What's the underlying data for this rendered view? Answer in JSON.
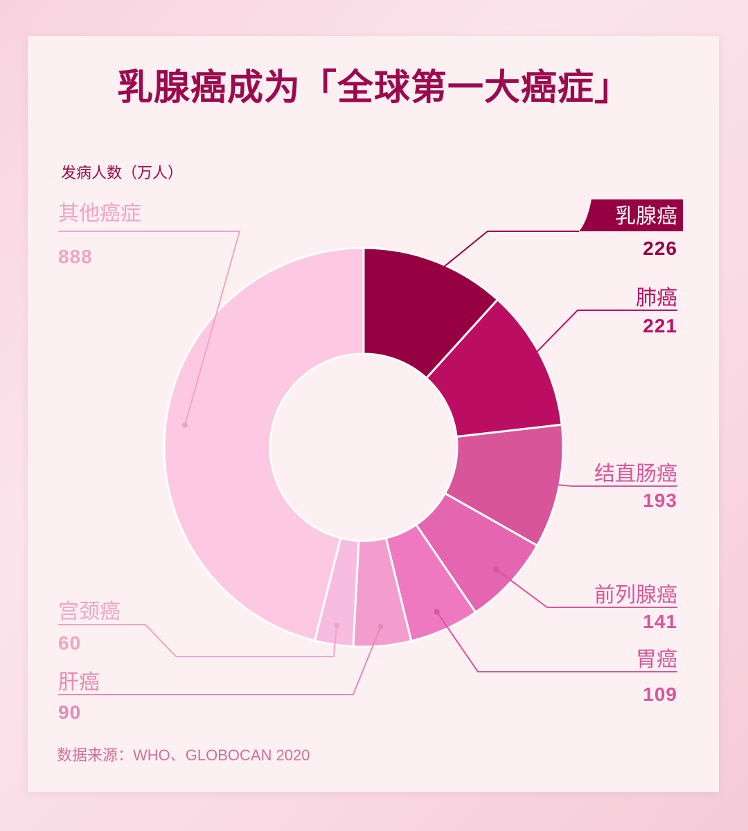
{
  "title": "乳腺癌成为「全球第一大癌症」",
  "unit_label": "发病人数（万人）",
  "source": "数据来源：WHO、GLOBOCAN 2020",
  "chart_data": {
    "type": "pie",
    "title": "乳腺癌成为「全球第一大癌症」",
    "ylabel": "发病人数（万人）",
    "categories": [
      "乳腺癌",
      "肺癌",
      "结直肠癌",
      "前列腺癌",
      "胃癌",
      "肝癌",
      "宫颈癌",
      "其他癌症"
    ],
    "values": [
      226,
      221,
      193,
      141,
      109,
      90,
      60,
      888
    ],
    "colors": [
      "#960042",
      "#bb0e63",
      "#d8559a",
      "#e466b0",
      "#ee79c0",
      "#f39dcf",
      "#f7bcdf",
      "#fcc8e2"
    ],
    "label_colors": [
      "#960042",
      "#bb0e63",
      "#d8559a",
      "#d8559a",
      "#d8559a",
      "#e58ab5",
      "#eea5c4",
      "#eea5c4"
    ]
  }
}
